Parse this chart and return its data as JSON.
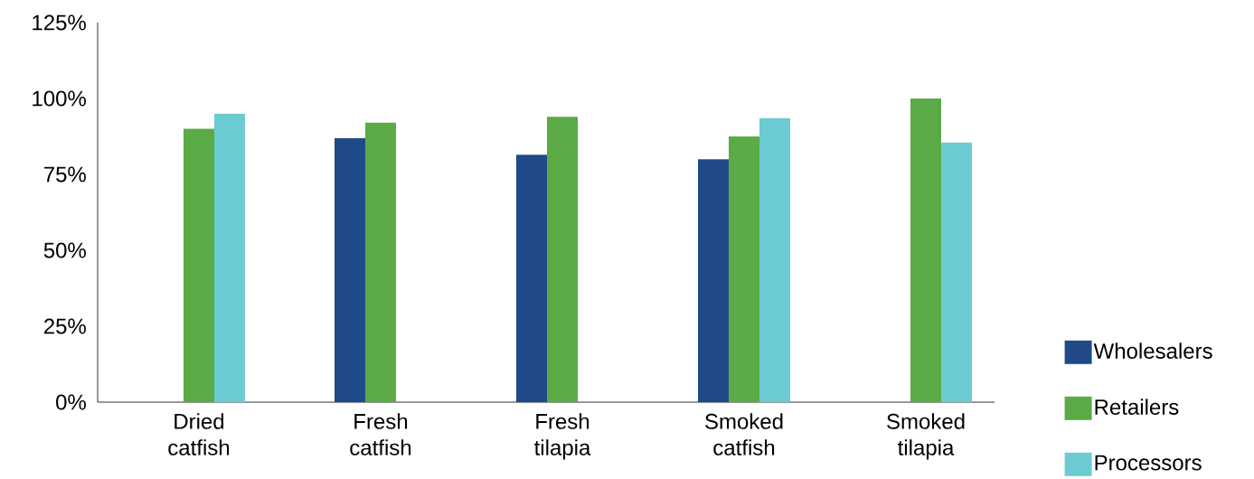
{
  "chart_data": {
    "type": "bar",
    "categories": [
      "Dried catfish",
      "Fresh catfish",
      "Fresh tilapia",
      "Smoked catfish",
      "Smoked tilapia"
    ],
    "series": [
      {
        "name": "Wholesalers",
        "color": "#1f4a87",
        "values": [
          null,
          87,
          81.5,
          80,
          null
        ]
      },
      {
        "name": "Retailers",
        "color": "#5aaa46",
        "values": [
          90,
          92,
          94,
          87.5,
          100
        ]
      },
      {
        "name": "Processors",
        "color": "#6ccbd2",
        "values": [
          95,
          null,
          null,
          93.5,
          85.5
        ]
      }
    ],
    "ylim": [
      0,
      125
    ],
    "yticks": [
      {
        "value": 0,
        "label": "0%"
      },
      {
        "value": 25,
        "label": "25%"
      },
      {
        "value": 50,
        "label": "50%"
      },
      {
        "value": 75,
        "label": "75%"
      },
      {
        "value": 100,
        "label": "100%"
      },
      {
        "value": 125,
        "label": "125%"
      }
    ],
    "grid": false,
    "legend": "bottom right"
  }
}
